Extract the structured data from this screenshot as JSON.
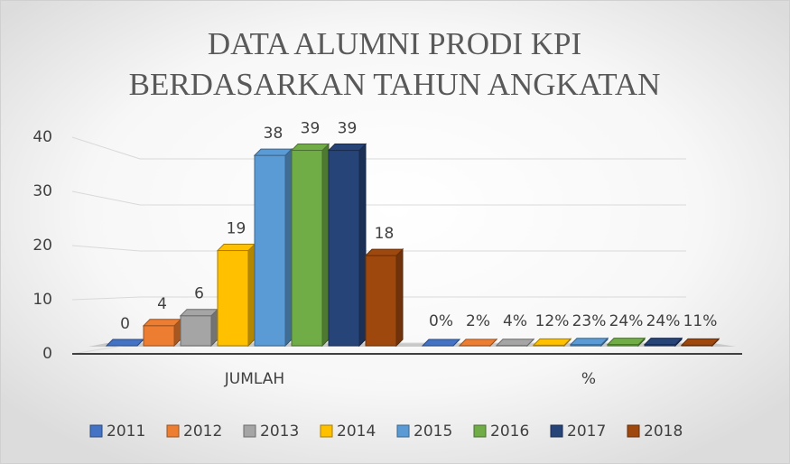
{
  "chart_data": {
    "type": "bar3d",
    "title": [
      "DATA ALUMNI PRODI KPI",
      "BERDASARKAN TAHUN ANGKATAN"
    ],
    "categories": [
      "JUMLAH",
      "%"
    ],
    "ylim": [
      0,
      40
    ],
    "yticks": [
      0,
      10,
      20,
      30,
      40
    ],
    "grid": true,
    "legend": "bottom",
    "series": [
      {
        "name": "2011",
        "color": "#4472c4",
        "values": [
          0,
          0
        ],
        "value_labels": [
          "0",
          "0%"
        ]
      },
      {
        "name": "2012",
        "color": "#ed7d31",
        "values": [
          4,
          0.02
        ],
        "value_labels": [
          "4",
          "2%"
        ]
      },
      {
        "name": "2013",
        "color": "#a5a5a5",
        "values": [
          6,
          0.04
        ],
        "value_labels": [
          "6",
          "4%"
        ]
      },
      {
        "name": "2014",
        "color": "#ffc000",
        "values": [
          19,
          0.12
        ],
        "value_labels": [
          "19",
          "12%"
        ]
      },
      {
        "name": "2015",
        "color": "#5b9bd5",
        "values": [
          38,
          0.23
        ],
        "value_labels": [
          "38",
          "23%"
        ]
      },
      {
        "name": "2016",
        "color": "#70ad47",
        "values": [
          39,
          0.24
        ],
        "value_labels": [
          "39",
          "24%"
        ]
      },
      {
        "name": "2017",
        "color": "#264478",
        "values": [
          39,
          0.24
        ],
        "value_labels": [
          "39",
          "24%"
        ]
      },
      {
        "name": "2018",
        "color": "#9e480e",
        "values": [
          18,
          0.11
        ],
        "value_labels": [
          "18",
          "11%"
        ]
      }
    ]
  }
}
